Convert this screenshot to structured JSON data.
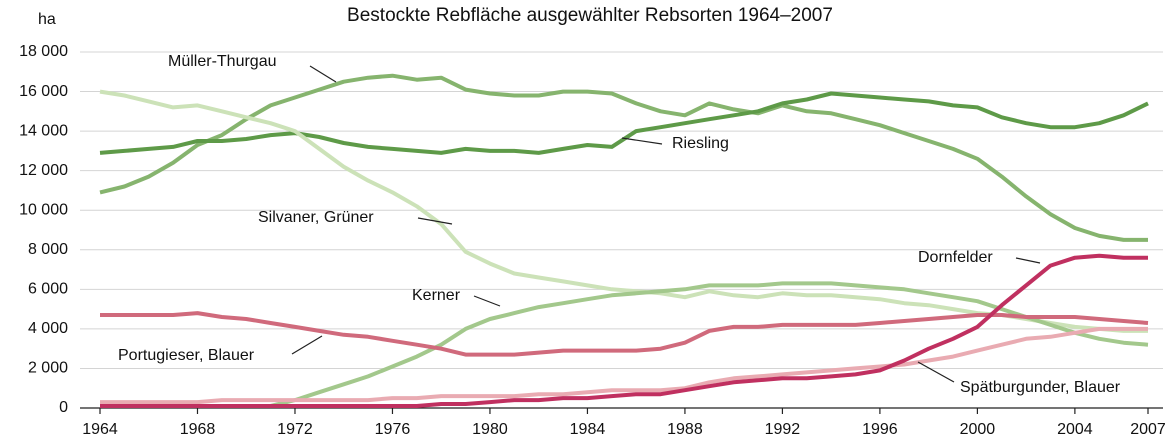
{
  "chart_data": {
    "type": "line",
    "title": "Bestockte Rebfläche ausgewählter Rebsorten 1964–2007",
    "y_label": "ha",
    "x": [
      1964,
      1965,
      1966,
      1967,
      1968,
      1969,
      1970,
      1971,
      1972,
      1973,
      1974,
      1975,
      1976,
      1977,
      1978,
      1979,
      1980,
      1981,
      1982,
      1983,
      1984,
      1985,
      1986,
      1987,
      1988,
      1989,
      1990,
      1991,
      1992,
      1993,
      1994,
      1995,
      1996,
      1997,
      1998,
      1999,
      2000,
      2001,
      2002,
      2003,
      2004,
      2005,
      2006,
      2007
    ],
    "xlim": [
      1964,
      2007
    ],
    "xticks": [
      1964,
      1968,
      1972,
      1976,
      1980,
      1984,
      1988,
      1992,
      1996,
      2000,
      2004,
      2007
    ],
    "ylim": [
      0,
      18000
    ],
    "yticks": [
      0,
      {
        "value": 2000,
        "label": "2 000"
      },
      {
        "value": 4000,
        "label": "4 000"
      },
      {
        "value": 6000,
        "label": "6 000"
      },
      {
        "value": 8000,
        "label": "8 000"
      },
      {
        "value": 10000,
        "label": "10 000"
      },
      {
        "value": 12000,
        "label": "12 000"
      },
      {
        "value": 14000,
        "label": "14 000"
      },
      {
        "value": 16000,
        "label": "16 000"
      },
      {
        "value": 18000,
        "label": "18 000"
      }
    ],
    "grid": true,
    "series": [
      {
        "name": "Müller-Thurgau",
        "color": "#86b46e",
        "values": [
          10900,
          11200,
          11700,
          12400,
          13300,
          13800,
          14600,
          15300,
          15700,
          16100,
          16500,
          16700,
          16800,
          16600,
          16700,
          16100,
          15900,
          15800,
          15800,
          16000,
          16000,
          15900,
          15400,
          15000,
          14800,
          15400,
          15100,
          14900,
          15300,
          15000,
          14900,
          14600,
          14300,
          13900,
          13500,
          13100,
          12600,
          11700,
          10700,
          9800,
          9100,
          8700,
          8500,
          8500
        ]
      },
      {
        "name": "Riesling",
        "color": "#5e9a48",
        "values": [
          12900,
          13000,
          13100,
          13200,
          13500,
          13500,
          13600,
          13800,
          13900,
          13700,
          13400,
          13200,
          13100,
          13000,
          12900,
          13100,
          13000,
          13000,
          12900,
          13100,
          13300,
          13200,
          14000,
          14200,
          14400,
          14600,
          14800,
          15000,
          15400,
          15600,
          15900,
          15800,
          15700,
          15600,
          15500,
          15300,
          15200,
          14700,
          14400,
          14200,
          14200,
          14400,
          14800,
          15400
        ]
      },
      {
        "name": "Silvaner, Grüner",
        "color": "#cce2b8",
        "values": [
          16000,
          15800,
          15500,
          15200,
          15300,
          15000,
          14700,
          14400,
          14000,
          13100,
          12200,
          11500,
          10900,
          10200,
          9300,
          7900,
          7300,
          6800,
          6600,
          6400,
          6200,
          6000,
          5900,
          5800,
          5600,
          5900,
          5700,
          5600,
          5800,
          5700,
          5700,
          5600,
          5500,
          5300,
          5200,
          5000,
          4800,
          4700,
          4500,
          4300,
          4100,
          4000,
          3900,
          3900
        ]
      },
      {
        "name": "Kerner",
        "color": "#a3c88c",
        "values": [
          100,
          100,
          100,
          100,
          100,
          100,
          100,
          100,
          400,
          800,
          1200,
          1600,
          2100,
          2600,
          3200,
          4000,
          4500,
          4800,
          5100,
          5300,
          5500,
          5700,
          5800,
          5900,
          6000,
          6200,
          6200,
          6200,
          6300,
          6300,
          6300,
          6200,
          6100,
          6000,
          5800,
          5600,
          5400,
          5000,
          4600,
          4200,
          3800,
          3500,
          3300,
          3200
        ]
      },
      {
        "name": "Portugieser, Blauer",
        "color": "#d06a7c",
        "values": [
          4700,
          4700,
          4700,
          4700,
          4800,
          4600,
          4500,
          4300,
          4100,
          3900,
          3700,
          3600,
          3400,
          3200,
          3000,
          2700,
          2700,
          2700,
          2800,
          2900,
          2900,
          2900,
          2900,
          3000,
          3300,
          3900,
          4100,
          4100,
          4200,
          4200,
          4200,
          4200,
          4300,
          4400,
          4500,
          4600,
          4700,
          4700,
          4600,
          4600,
          4600,
          4500,
          4400,
          4300
        ]
      },
      {
        "name": "Spätburgunder, Blauer",
        "color": "#e9abb2",
        "values": [
          300,
          300,
          300,
          300,
          300,
          400,
          400,
          400,
          400,
          400,
          400,
          400,
          500,
          500,
          600,
          600,
          600,
          600,
          700,
          700,
          800,
          900,
          900,
          900,
          1000,
          1300,
          1500,
          1600,
          1700,
          1800,
          1900,
          2000,
          2100,
          2200,
          2400,
          2600,
          2900,
          3200,
          3500,
          3600,
          3800,
          4000,
          4000,
          4000
        ]
      },
      {
        "name": "Dornfelder",
        "color": "#c03060",
        "values": [
          100,
          100,
          100,
          100,
          100,
          100,
          100,
          100,
          100,
          100,
          100,
          100,
          100,
          100,
          200,
          200,
          300,
          400,
          400,
          500,
          500,
          600,
          700,
          700,
          900,
          1100,
          1300,
          1400,
          1500,
          1500,
          1600,
          1700,
          1900,
          2400,
          3000,
          3500,
          4100,
          5200,
          6200,
          7200,
          7600,
          7700,
          7600,
          7600
        ]
      }
    ]
  }
}
